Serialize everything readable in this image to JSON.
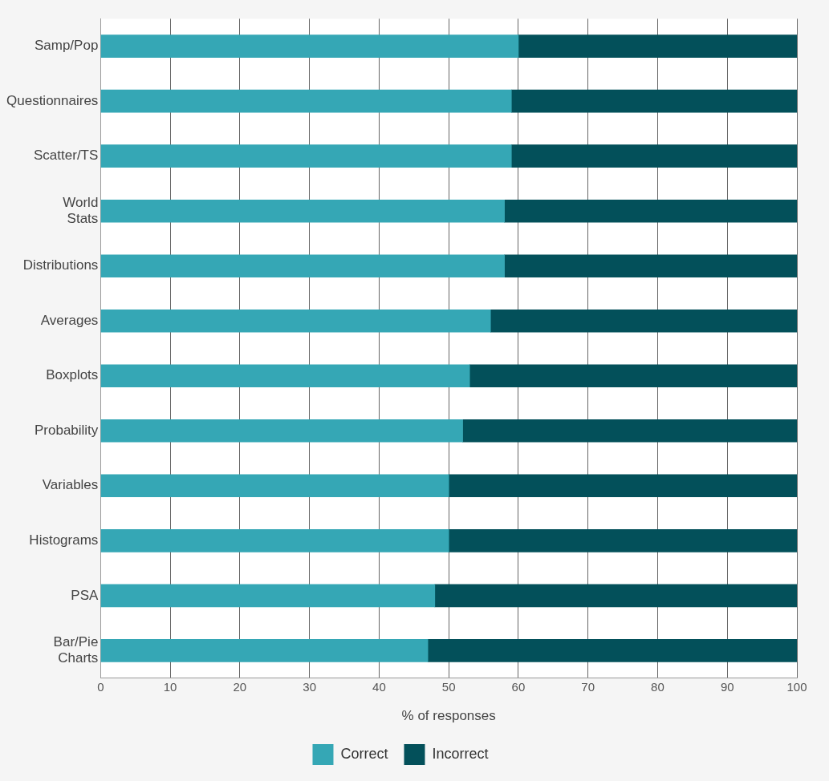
{
  "chart_data": {
    "type": "bar",
    "orientation": "horizontal",
    "stacked": true,
    "xlabel": "% of responses",
    "categories": [
      "Samp/Pop",
      "Questionnaires",
      "Scatter/TS",
      "World Stats",
      "Distributions",
      "Averages",
      "Boxplots",
      "Probability",
      "Variables",
      "Histograms",
      "PSA",
      "Bar/Pie Charts"
    ],
    "series": [
      {
        "name": "Correct",
        "color": "#35a7b5",
        "values": [
          60,
          59,
          59,
          58,
          58,
          56,
          53,
          52,
          50,
          50,
          48,
          47
        ]
      },
      {
        "name": "Incorrect",
        "color": "#03505a",
        "values": [
          40,
          41,
          41,
          42,
          42,
          44,
          47,
          48,
          50,
          50,
          52,
          53
        ]
      }
    ],
    "xlim": [
      0,
      100
    ],
    "xticks": [
      0,
      10,
      20,
      30,
      40,
      50,
      60,
      70,
      80,
      90,
      100
    ],
    "grid": "x",
    "legend": "bottom"
  }
}
